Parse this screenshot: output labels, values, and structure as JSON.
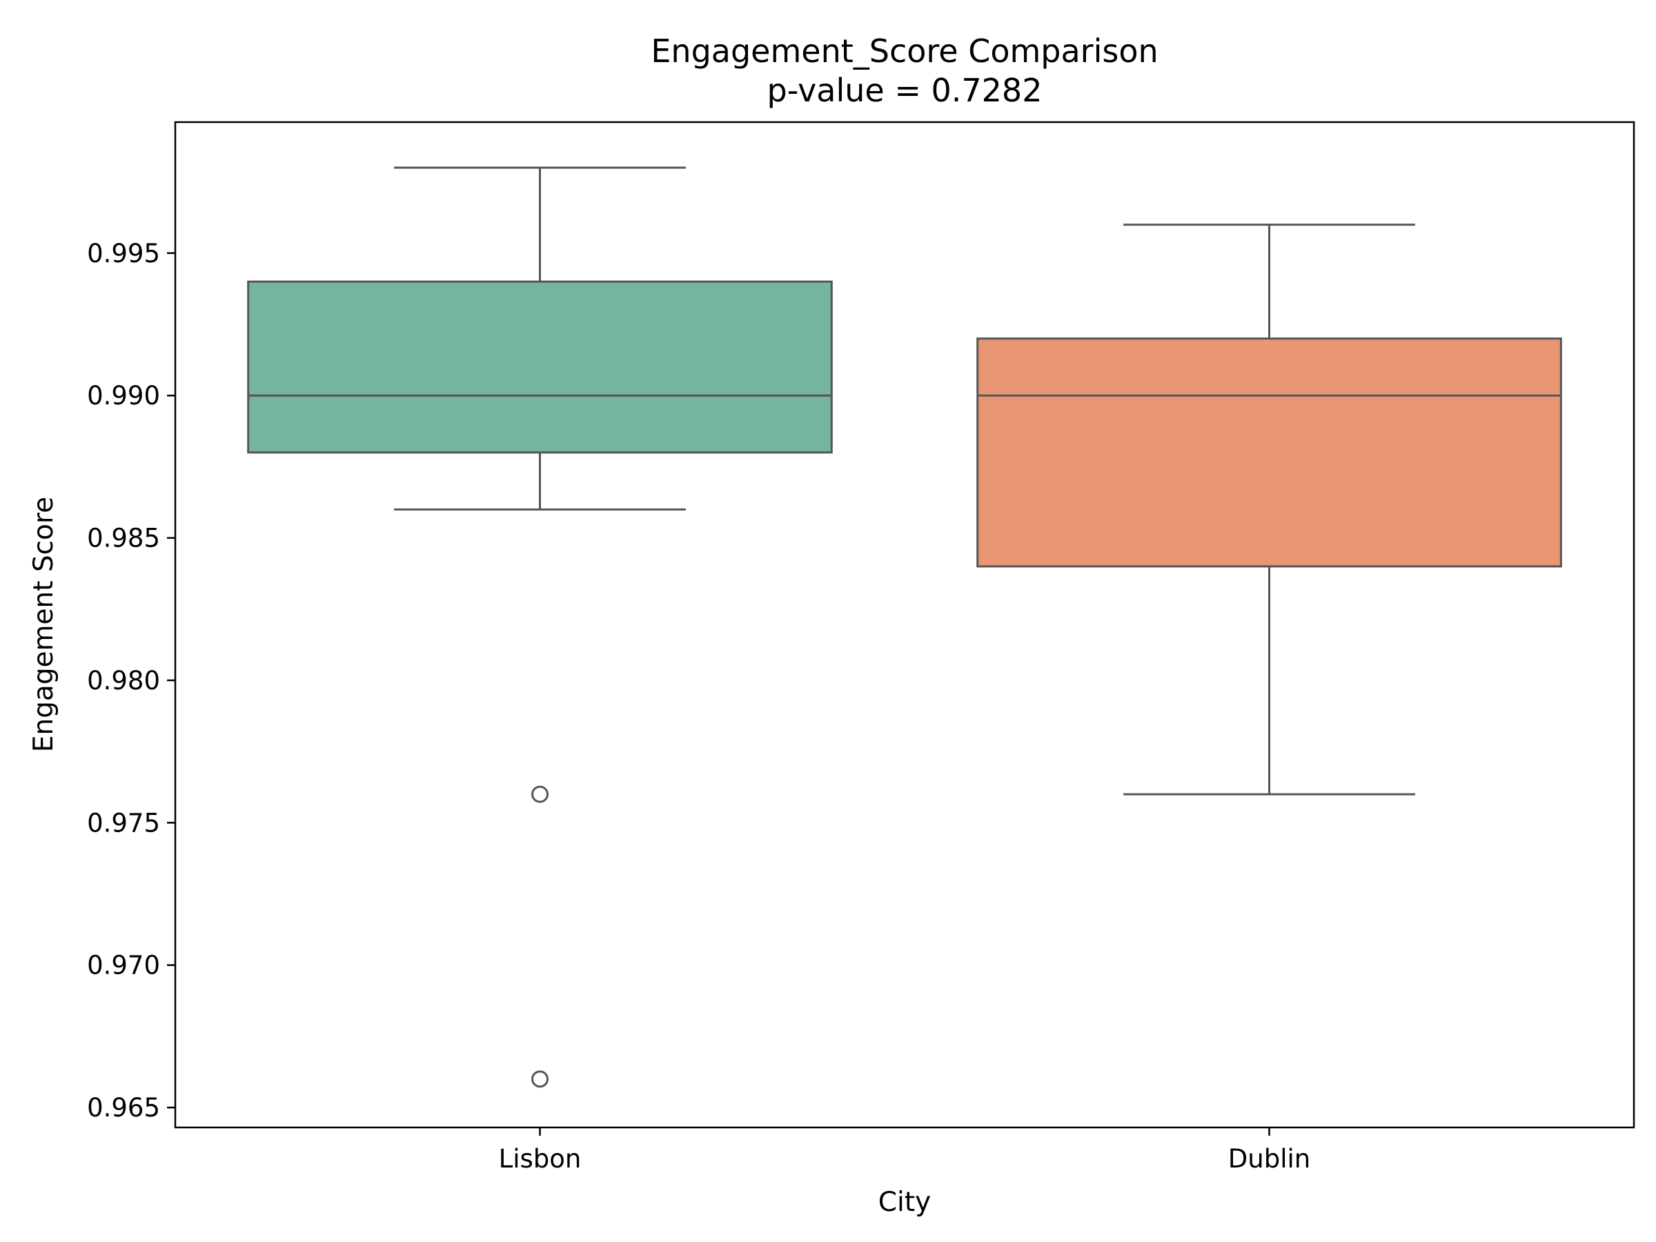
{
  "chart_data": {
    "type": "box",
    "title": "Engagement_Score Comparison",
    "subtitle": "p-value = 0.7282",
    "xlabel": "City",
    "ylabel": "Engagement Score",
    "ylim": [
      0.9643,
      0.9996
    ],
    "yticks": [
      0.965,
      0.97,
      0.975,
      0.98,
      0.985,
      0.99,
      0.995
    ],
    "ytick_labels": [
      "0.965",
      "0.970",
      "0.975",
      "0.980",
      "0.985",
      "0.990",
      "0.995"
    ],
    "categories": [
      "Lisbon",
      "Dublin"
    ],
    "grid": false,
    "legend": "none",
    "line_color": "#555555",
    "boxes": [
      {
        "category": "Lisbon",
        "color": "#75b5a0",
        "whisker_low": 0.986,
        "q1": 0.988,
        "median": 0.99,
        "q3": 0.994,
        "whisker_high": 0.998,
        "outliers": [
          0.976,
          0.966
        ]
      },
      {
        "category": "Dublin",
        "color": "#e99675",
        "whisker_low": 0.976,
        "q1": 0.984,
        "median": 0.99,
        "q3": 0.992,
        "whisker_high": 0.996,
        "outliers": []
      }
    ]
  }
}
